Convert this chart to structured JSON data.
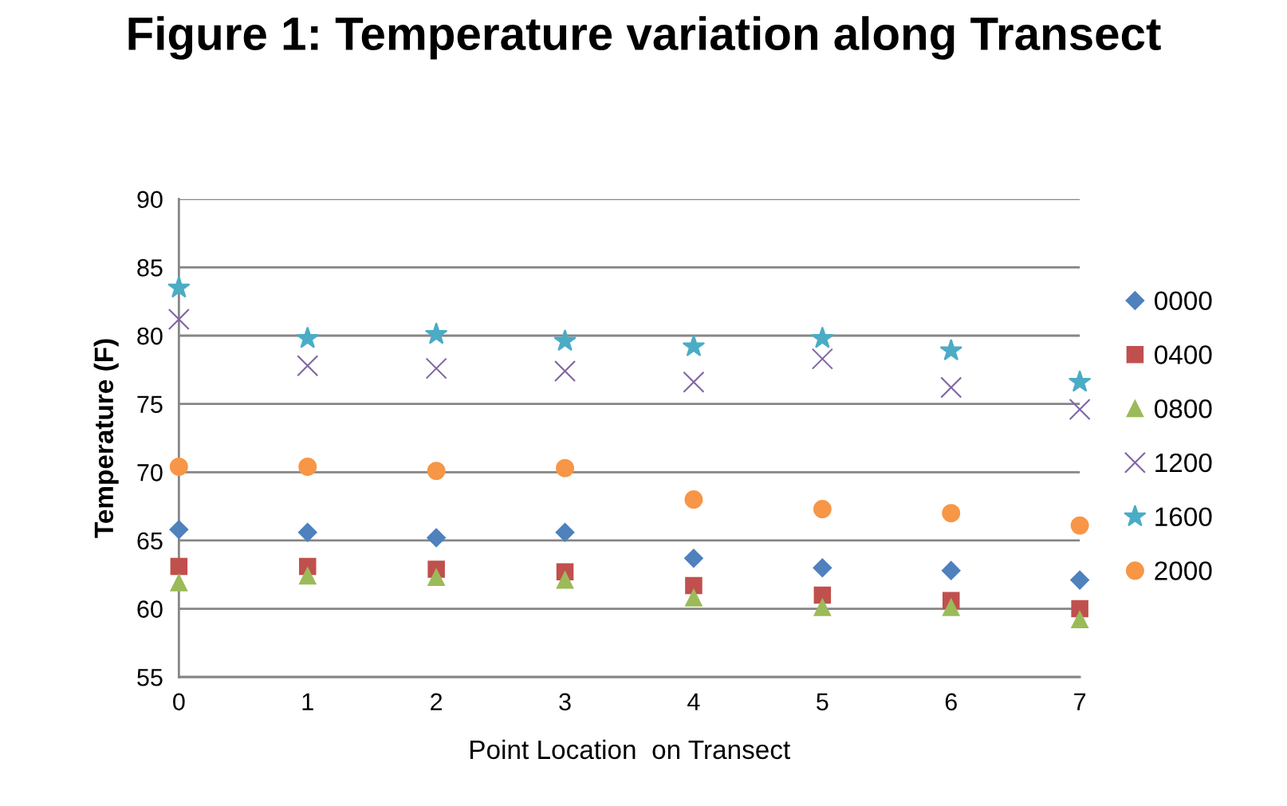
{
  "chart_data": {
    "type": "scatter",
    "title": "Figure 1: Temperature variation along Transect",
    "xlabel": "Point Location  on Transect",
    "ylabel": "Temperature (F)",
    "x": [
      0,
      1,
      2,
      3,
      4,
      5,
      6,
      7
    ],
    "series": [
      {
        "name": "0000",
        "color": "#4f81bd",
        "marker": "diamond",
        "values": [
          65.8,
          65.6,
          65.2,
          65.6,
          63.7,
          63.0,
          62.8,
          62.1
        ]
      },
      {
        "name": "0400",
        "color": "#c0504d",
        "marker": "square",
        "values": [
          63.1,
          63.1,
          62.9,
          62.7,
          61.7,
          61.0,
          60.6,
          60.0
        ]
      },
      {
        "name": "0800",
        "color": "#9bbb59",
        "marker": "triangle",
        "values": [
          61.9,
          62.4,
          62.3,
          62.1,
          60.8,
          60.1,
          60.1,
          59.2
        ]
      },
      {
        "name": "1200",
        "color": "#8064a2",
        "marker": "cross",
        "values": [
          81.2,
          77.8,
          77.6,
          77.4,
          76.6,
          78.3,
          76.2,
          74.6
        ]
      },
      {
        "name": "1600",
        "color": "#4bacc6",
        "marker": "star",
        "values": [
          83.5,
          79.8,
          80.1,
          79.6,
          79.2,
          79.8,
          78.9,
          76.6
        ]
      },
      {
        "name": "2000",
        "color": "#f79646",
        "marker": "circle",
        "values": [
          70.4,
          70.4,
          70.1,
          70.3,
          68.0,
          67.3,
          67.0,
          66.1
        ]
      }
    ],
    "xlim": [
      0,
      7
    ],
    "xticks": [
      0,
      1,
      2,
      3,
      4,
      5,
      6,
      7
    ],
    "ylim": [
      55,
      90
    ],
    "yticks": [
      55,
      60,
      65,
      70,
      75,
      80,
      85,
      90
    ],
    "grid": "y",
    "legend": "right"
  }
}
